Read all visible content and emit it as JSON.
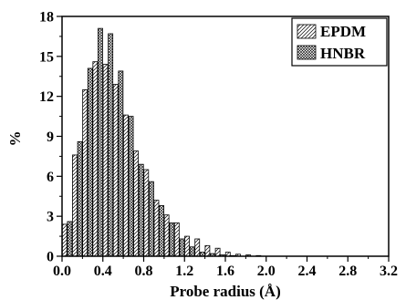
{
  "chart_data": {
    "type": "bar",
    "xlabel": "Probe radius (Å)",
    "ylabel": "%",
    "xlim": [
      0.0,
      3.2
    ],
    "ylim": [
      0,
      18
    ],
    "xticks": [
      "0.0",
      "0.4",
      "0.8",
      "1.2",
      "1.6",
      "2.0",
      "2.4",
      "2.8",
      "3.2"
    ],
    "yticks": [
      "0",
      "3",
      "6",
      "9",
      "12",
      "15",
      "18"
    ],
    "grid": false,
    "legend_position": "top-right",
    "x": [
      0.05,
      0.15,
      0.25,
      0.35,
      0.45,
      0.55,
      0.65,
      0.75,
      0.85,
      0.95,
      1.05,
      1.15,
      1.25,
      1.35,
      1.45,
      1.55,
      1.65,
      1.75,
      1.85,
      1.95,
      2.05,
      2.15,
      2.25,
      2.35,
      2.45,
      2.55,
      2.65,
      2.75,
      2.85,
      2.95,
      3.05
    ],
    "series": [
      {
        "name": "EPDM",
        "pattern": "diagonal-lines",
        "values": [
          2.4,
          7.6,
          12.5,
          14.6,
          14.4,
          12.9,
          10.6,
          7.9,
          6.5,
          4.2,
          3.1,
          2.5,
          1.5,
          1.3,
          0.8,
          0.6,
          0.3,
          0.15,
          0.1,
          0.05,
          0.0,
          0.0,
          0.0,
          0.0,
          0.0,
          0.0,
          0.0,
          0.0,
          0.0,
          0.0,
          0.0
        ]
      },
      {
        "name": "HNBR",
        "pattern": "crosshatch",
        "values": [
          2.6,
          8.6,
          14.1,
          17.1,
          16.7,
          13.9,
          10.5,
          6.9,
          5.6,
          3.8,
          2.5,
          1.3,
          0.7,
          0.3,
          0.2,
          0.1,
          0.05,
          0.0,
          0.0,
          0.0,
          0.0,
          0.0,
          0.0,
          0.0,
          0.0,
          0.0,
          0.0,
          0.0,
          0.0,
          0.0,
          0.0
        ]
      }
    ]
  }
}
